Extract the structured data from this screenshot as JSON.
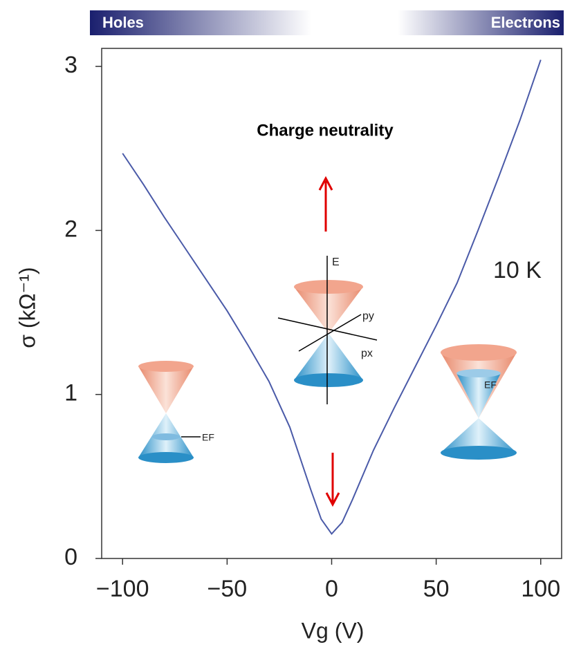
{
  "chart_data": {
    "type": "line",
    "x_label": "Vg (V)",
    "y_label": "σ (kΩ⁻¹)",
    "annotations": [
      "Holes",
      "Electrons",
      "Charge neutrality",
      "10 K",
      "E",
      "py",
      "px",
      "EF",
      "EF"
    ],
    "x": [
      -100,
      -90,
      -80,
      -70,
      -60,
      -50,
      -40,
      -30,
      -20,
      -10,
      -5,
      0,
      5,
      10,
      20,
      30,
      40,
      50,
      60,
      70,
      80,
      90,
      100
    ],
    "series": [
      {
        "color": "#4a5aa8",
        "values": [
          2.47,
          2.28,
          2.08,
          1.89,
          1.7,
          1.51,
          1.3,
          1.08,
          0.8,
          0.42,
          0.24,
          0.15,
          0.22,
          0.36,
          0.66,
          0.92,
          1.17,
          1.42,
          1.68,
          2.0,
          2.33,
          2.67,
          3.04
        ]
      }
    ],
    "xlim": [
      -110,
      110
    ],
    "ylim": [
      0,
      3.11
    ],
    "xticks": [
      {
        "value": -100,
        "label": "−100"
      },
      {
        "value": -50,
        "label": "−50"
      },
      0,
      50,
      100
    ],
    "yticks": [
      0,
      1,
      2,
      3
    ]
  }
}
